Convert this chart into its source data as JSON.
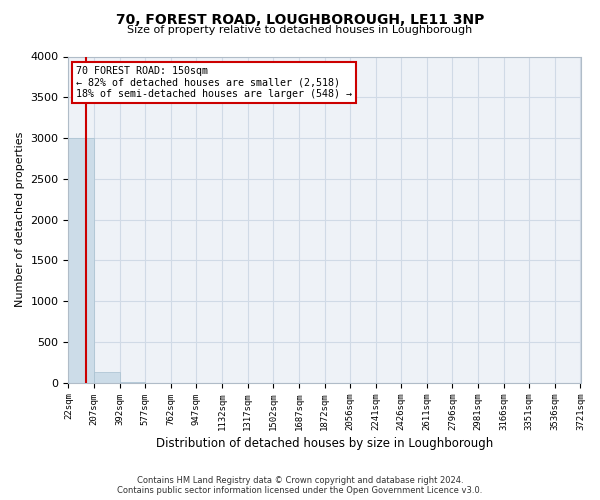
{
  "title": "70, FOREST ROAD, LOUGHBOROUGH, LE11 3NP",
  "subtitle": "Size of property relative to detached houses in Loughborough",
  "xlabel": "Distribution of detached houses by size in Loughborough",
  "ylabel": "Number of detached properties",
  "bin_edges": [
    22,
    207,
    392,
    577,
    762,
    947,
    1132,
    1317,
    1502,
    1687,
    1872,
    2056,
    2241,
    2426,
    2611,
    2796,
    2981,
    3166,
    3351,
    3536,
    3721
  ],
  "bin_counts": [
    3000,
    130,
    5,
    2,
    1,
    1,
    0,
    0,
    0,
    0,
    0,
    0,
    0,
    0,
    0,
    0,
    0,
    0,
    0,
    0
  ],
  "bar_color": "#ccdce8",
  "bar_edge_color": "#a8c0d0",
  "property_size": 150,
  "property_line_color": "#cc0000",
  "annotation_line1": "70 FOREST ROAD: 150sqm",
  "annotation_line2": "← 82% of detached houses are smaller (2,518)",
  "annotation_line3": "18% of semi-detached houses are larger (548) →",
  "annotation_box_color": "#ffffff",
  "annotation_box_edge_color": "#cc0000",
  "ylim": [
    0,
    4000
  ],
  "yticks": [
    0,
    500,
    1000,
    1500,
    2000,
    2500,
    3000,
    3500,
    4000
  ],
  "grid_color": "#d0dae6",
  "footer_line1": "Contains HM Land Registry data © Crown copyright and database right 2024.",
  "footer_line2": "Contains public sector information licensed under the Open Government Licence v3.0.",
  "background_color": "#ffffff",
  "axes_background_color": "#eef2f7"
}
